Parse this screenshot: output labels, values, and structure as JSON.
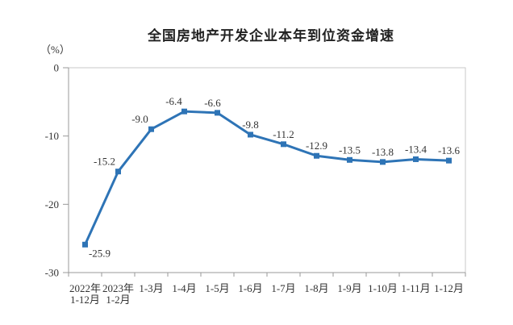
{
  "chart": {
    "title": "全国房地产开发企业本年到位资金增速",
    "unit": "（%）"
  },
  "chart_data": {
    "type": "line",
    "title": "全国房地产开发企业本年到位资金增速",
    "ylabel": "（%）",
    "xlabel": "",
    "categories": [
      [
        "2022年",
        "1-12月"
      ],
      [
        "2023年",
        "1-2月"
      ],
      [
        "1-3月"
      ],
      [
        "1-4月"
      ],
      [
        "1-5月"
      ],
      [
        "1-6月"
      ],
      [
        "1-7月"
      ],
      [
        "1-8月"
      ],
      [
        "1-9月"
      ],
      [
        "1-10月"
      ],
      [
        "1-11月"
      ],
      [
        "1-12月"
      ]
    ],
    "series": [
      {
        "name": "本年到位资金增速",
        "values": [
          -25.9,
          -15.2,
          -9.0,
          -6.4,
          -6.6,
          -9.8,
          -11.2,
          -12.9,
          -13.5,
          -13.8,
          -13.4,
          -13.6
        ]
      }
    ],
    "data_labels": [
      "-25.9",
      "-15.2",
      "-9.0",
      "-6.4",
      "-6.6",
      "-9.8",
      "-11.2",
      "-12.9",
      "-13.5",
      "-13.8",
      "-13.4",
      "-13.6"
    ],
    "ylim": [
      -30,
      0
    ],
    "yticks": [
      0,
      -10,
      -20,
      -30
    ],
    "grid": false,
    "legend_position": "none",
    "line_color": "#2E74B6",
    "axis_color": "#999999",
    "border_color": "#C9C9C9",
    "text_color": "#333333",
    "marker": "square"
  }
}
